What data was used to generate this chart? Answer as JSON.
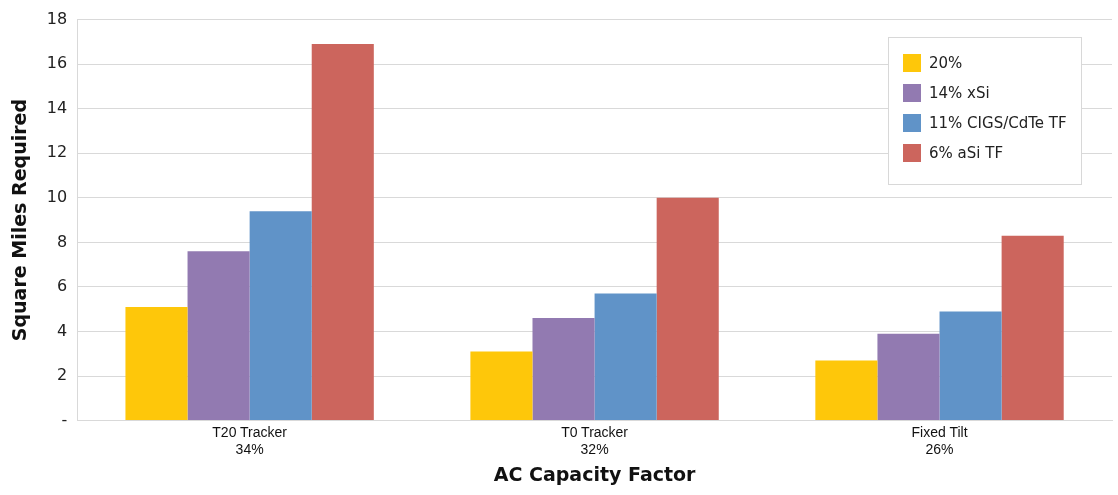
{
  "chart_data": {
    "type": "bar",
    "xlabel": "AC Capacity Factor",
    "ylabel": "Square Miles Required",
    "categories": [
      "T20 Tracker\n34%",
      "T0 Tracker\n32%",
      "Fixed Tilt\n26%"
    ],
    "series": [
      {
        "name": "20%",
        "color": "#fec70a",
        "values": [
          5.1,
          3.1,
          2.7
        ]
      },
      {
        "name": "14% xSi",
        "color": "#927ab1",
        "values": [
          7.6,
          4.6,
          3.9
        ]
      },
      {
        "name": "11% CIGS/CdTe TF",
        "color": "#6093c8",
        "values": [
          9.4,
          5.7,
          4.9
        ]
      },
      {
        "name": "6% aSi TF",
        "color": "#cc655d",
        "values": [
          16.9,
          10.0,
          8.3
        ]
      }
    ],
    "ylim": [
      0,
      18
    ],
    "yticks": [
      {
        "value": 0,
        "label": "-"
      },
      2,
      4,
      6,
      8,
      10,
      12,
      14,
      16,
      18
    ],
    "grid": "y",
    "legend": "top right"
  }
}
